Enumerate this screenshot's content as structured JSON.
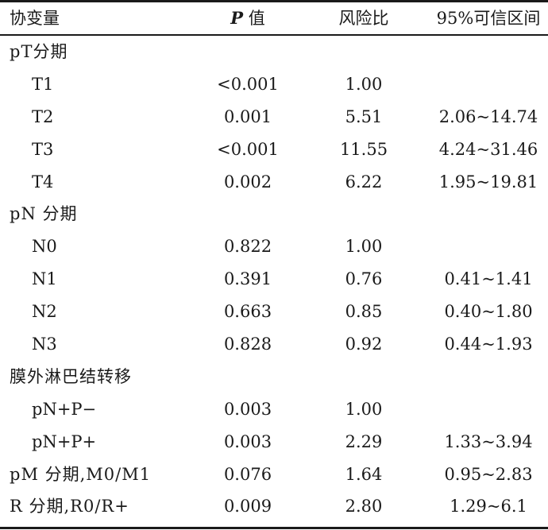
{
  "header": {
    "covariate": "协变量",
    "p_italic": "P",
    "p_suffix": " 值",
    "hazard_ratio": "风险比",
    "ci": "95%可信区间"
  },
  "rows": [
    {
      "label": "pT分期",
      "p": "",
      "hr": "",
      "ci": "",
      "group": true
    },
    {
      "label": "T1",
      "p": "<0.001",
      "hr": "1.00",
      "ci": "",
      "group": false
    },
    {
      "label": "T2",
      "p": "0.001",
      "hr": "5.51",
      "ci": "2.06~14.74",
      "group": false
    },
    {
      "label": "T3",
      "p": "<0.001",
      "hr": "11.55",
      "ci": "4.24~31.46",
      "group": false
    },
    {
      "label": "T4",
      "p": "0.002",
      "hr": "6.22",
      "ci": "1.95~19.81",
      "group": false
    },
    {
      "label": "pN 分期",
      "p": "",
      "hr": "",
      "ci": "",
      "group": true
    },
    {
      "label": "N0",
      "p": "0.822",
      "hr": "1.00",
      "ci": "",
      "group": false
    },
    {
      "label": "N1",
      "p": "0.391",
      "hr": "0.76",
      "ci": "0.41~1.41",
      "group": false
    },
    {
      "label": "N2",
      "p": "0.663",
      "hr": "0.85",
      "ci": "0.40~1.80",
      "group": false
    },
    {
      "label": "N3",
      "p": "0.828",
      "hr": "0.92",
      "ci": "0.44~1.93",
      "group": false
    },
    {
      "label": "膜外淋巴结转移",
      "p": "",
      "hr": "",
      "ci": "",
      "group": true
    },
    {
      "label": "pN+P−",
      "p": "0.003",
      "hr": "1.00",
      "ci": "",
      "group": false
    },
    {
      "label": "pN+P+",
      "p": "0.003",
      "hr": "2.29",
      "ci": "1.33~3.94",
      "group": false
    },
    {
      "label": "pM 分期,M0/M1",
      "p": "0.076",
      "hr": "1.64",
      "ci": "0.95~2.83",
      "group": true
    },
    {
      "label": "R 分期,R0/R+",
      "p": "0.009",
      "hr": "2.80",
      "ci": "1.29~6.1",
      "group": true
    }
  ]
}
